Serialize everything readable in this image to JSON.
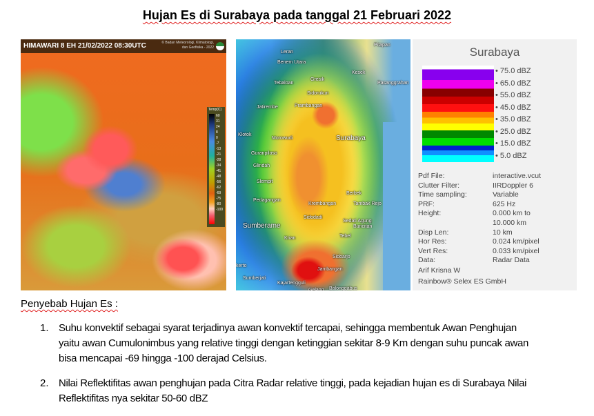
{
  "title": "Hujan Es di Surabaya pada tanggal 21 Februari 2022",
  "satellite": {
    "header": "HIMAWARI 8 EH  21/02/2022  08:30UTC",
    "credit_line1": "© Badan Meteorologi, Klimatologi,",
    "credit_line2": "dan Geofisika - 2022",
    "scale_label": "Temp(C)",
    "scale_ticks": [
      "60",
      "31",
      "24",
      "8",
      "0",
      "-7",
      "-13",
      "-21",
      "-28",
      "-34",
      "-41",
      "-48",
      "-56",
      "-62",
      "-69",
      "-75",
      "-80",
      "-100"
    ]
  },
  "radar": {
    "places": [
      "Pitapan",
      "Benem Utara",
      "Leran",
      "Tebaloan",
      "Gresik",
      "Kesek",
      "Pasanggrahan",
      "Sidorukun",
      "Jatirembe",
      "Prambangan",
      "Morowudi",
      "Klotok",
      "Surabaya",
      "Guranpiloso",
      "Glindah",
      "Slempit",
      "Berbek",
      "Pedagangan",
      "Krembangan",
      "Tambak Rejo",
      "Sidodadi",
      "Sedati Agung",
      "Sumberame",
      "Krian",
      "Buncitan",
      "Tebel",
      "Sidoarjo",
      "Jambangan",
      "Kajartengguli",
      "Sumberjati",
      "Gelang",
      "Balonggabus",
      "kerto"
    ]
  },
  "legend": {
    "header": "Surabaya",
    "values": [
      "75.0 dBZ",
      "65.0 dBZ",
      "55.0 dBZ",
      "45.0 dBZ",
      "35.0 dBZ",
      "25.0 dBZ",
      "15.0 dBZ",
      "5.0 dBZ"
    ],
    "meta": [
      [
        "Pdf File:",
        "interactive.vcut"
      ],
      [
        "Clutter Filter:",
        "IIRDoppler 6"
      ],
      [
        "Time sampling:",
        "Variable"
      ],
      [
        "PRF:",
        "625 Hz"
      ],
      [
        "Height:",
        "0.000 km to"
      ],
      [
        "",
        "10.000 km"
      ],
      [
        "Disp Len:",
        "10 km"
      ],
      [
        "Hor Res:",
        "0.024 km/pixel"
      ],
      [
        "Vert Res:",
        "0.033 km/pixel"
      ],
      [
        "Data:",
        "Radar Data"
      ]
    ],
    "author": "Arif Krisna W",
    "vendor": "Rainbow® Selex ES GmbH"
  },
  "causes": {
    "heading": "Penyebab  Hujan Es :",
    "items": [
      {
        "number": "1.",
        "lines": [
          "Suhu konvektif sebagai syarat terjadinya awan konvektif tercapai, sehingga membentuk Awan Penghujan",
          "yaitu awan Cumulonimbus yang relative tinggi  dengan ketinggian sekitar 8-9 Km dengan suhu puncak awan",
          "bisa mencapai -69 hingga -100 derajad Celsius."
        ]
      },
      {
        "number": "2.",
        "lines": [
          "Nilai Reflektifitas awan penghujan pada Citra Radar relative tinggi, pada kejadian hujan es di Surabaya Nilai",
          "Reflektifitas nya sekitar 50-60 dBZ"
        ]
      }
    ]
  }
}
